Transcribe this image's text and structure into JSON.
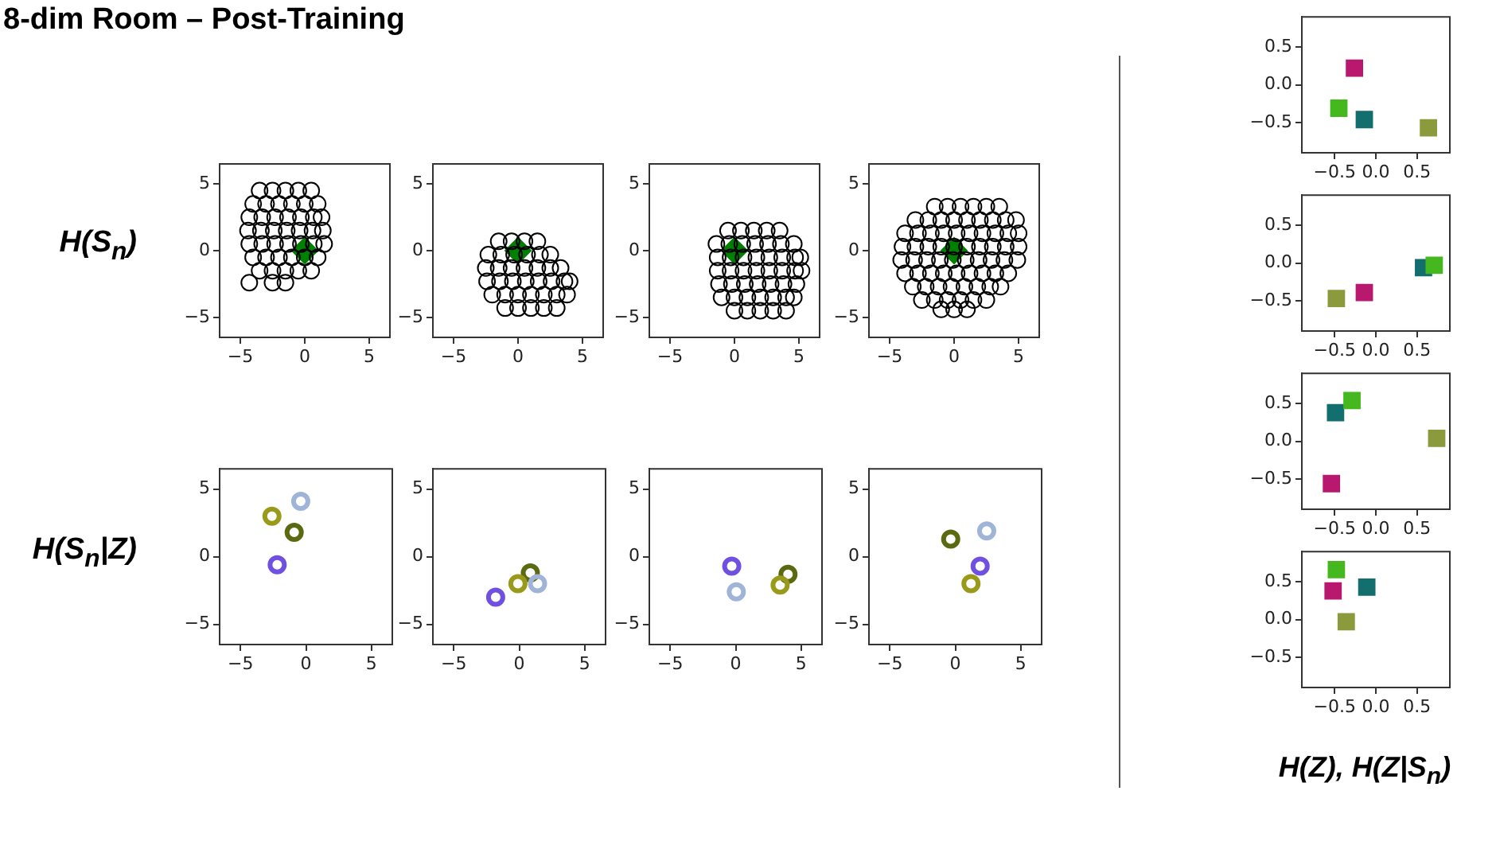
{
  "chart_data": [
    {
      "type": "scatter",
      "title": "8-dim Room – Post-Training",
      "ylabel": "H(S$_{n}$)",
      "xlim": [
        -6.6,
        6.6
      ],
      "ylim": [
        -6.5,
        6.5
      ],
      "xticks": [
        {
          "value": -5,
          "label": "−5"
        },
        0,
        5
      ],
      "yticks": [
        {
          "value": -5,
          "label": "−5"
        },
        0,
        5
      ],
      "series": [
        {
          "color": "#000000",
          "marker": "circle",
          "x": [
            -3.5,
            -2.5,
            -1.5,
            -0.5,
            0.5,
            -4,
            -3,
            -2,
            -1,
            0,
            1,
            -4.3,
            -3.3,
            -2.3,
            -1.3,
            -0.3,
            0.7,
            1.3,
            -4.4,
            -3.4,
            -2.4,
            -1.4,
            -0.4,
            0.6,
            1.4,
            -4.3,
            -3.3,
            -2.3,
            -1.3,
            -0.3,
            0.7,
            1.5,
            -4,
            -3,
            -2,
            -1,
            0,
            1,
            -3.5,
            -2.5,
            -1.5,
            -0.5,
            0.5,
            -4.3,
            -2.5,
            -1.5
          ],
          "values": [
            4.5,
            4.5,
            4.5,
            4.5,
            4.5,
            3.5,
            3.5,
            3.5,
            3.5,
            3.5,
            3.5,
            2.5,
            2.5,
            2.5,
            2.5,
            2.5,
            2.5,
            2.5,
            1.5,
            1.5,
            1.5,
            1.5,
            1.5,
            1.5,
            1.5,
            0.5,
            0.5,
            0.5,
            0.5,
            0.5,
            0.5,
            0.5,
            -0.5,
            -0.5,
            -0.5,
            -0.5,
            -0.5,
            -0.5,
            -1.5,
            -1.5,
            -1.5,
            -1.5,
            -1.5,
            -2.4,
            -2.4,
            -2.4
          ]
        },
        {
          "color": "#008000",
          "marker": "diamond",
          "x": [
            0
          ],
          "values": [
            0
          ]
        }
      ]
    },
    {
      "type": "scatter",
      "xlim": [
        -6.6,
        6.6
      ],
      "ylim": [
        -6.5,
        6.5
      ],
      "xticks": [
        {
          "value": -5,
          "label": "−5"
        },
        0,
        5
      ],
      "yticks": [
        {
          "value": -5,
          "label": "−5"
        },
        0,
        5
      ],
      "series": [
        {
          "color": "#000000",
          "marker": "circle",
          "x": [
            -1.5,
            -0.5,
            0.5,
            1.5,
            -2.3,
            -1.3,
            -0.3,
            0.7,
            1.7,
            2.5,
            -2.5,
            -1.5,
            -0.5,
            0.5,
            1.5,
            2.5,
            3.3,
            -2.4,
            -1.4,
            -0.4,
            0.6,
            1.6,
            2.6,
            3.6,
            4,
            -2,
            -1,
            0,
            1,
            2,
            3,
            3.8,
            -1,
            0,
            1,
            2,
            3
          ],
          "values": [
            0.7,
            0.7,
            0.7,
            0.7,
            -0.3,
            -0.3,
            -0.3,
            -0.3,
            -0.3,
            -0.3,
            -1.3,
            -1.3,
            -1.3,
            -1.3,
            -1.3,
            -1.3,
            -1.3,
            -2.3,
            -2.3,
            -2.3,
            -2.3,
            -2.3,
            -2.3,
            -2.3,
            -2.3,
            -3.3,
            -3.3,
            -3.3,
            -3.3,
            -3.3,
            -3.3,
            -3.3,
            -4.3,
            -4.3,
            -4.3,
            -4.3,
            -4.3
          ]
        },
        {
          "color": "#008000",
          "marker": "diamond",
          "x": [
            0
          ],
          "values": [
            0
          ]
        }
      ]
    },
    {
      "type": "scatter",
      "xlim": [
        -6.6,
        6.6
      ],
      "ylim": [
        -6.5,
        6.5
      ],
      "xticks": [
        {
          "value": -5,
          "label": "−5"
        },
        0,
        5
      ],
      "yticks": [
        {
          "value": -5,
          "label": "−5"
        },
        0,
        5
      ],
      "series": [
        {
          "color": "#000000",
          "marker": "circle",
          "x": [
            -0.5,
            0.5,
            1.5,
            2.5,
            3.5,
            -1.4,
            -0.4,
            0.6,
            1.6,
            2.6,
            3.6,
            4.6,
            -1.3,
            -0.3,
            0.7,
            1.7,
            2.7,
            3.7,
            4.7,
            5.1,
            -1.3,
            -0.3,
            0.7,
            1.7,
            2.7,
            3.7,
            4.7,
            5.2,
            -1.2,
            -0.2,
            0.8,
            1.8,
            2.8,
            3.8,
            4.8,
            -1,
            0,
            1,
            2,
            3,
            4,
            4.6,
            0,
            1,
            2,
            3,
            4
          ],
          "values": [
            1.5,
            1.5,
            1.5,
            1.5,
            1.5,
            0.5,
            0.5,
            0.5,
            0.5,
            0.5,
            0.5,
            0.5,
            -0.5,
            -0.5,
            -0.5,
            -0.5,
            -0.5,
            -0.5,
            -0.5,
            -0.5,
            -1.5,
            -1.5,
            -1.5,
            -1.5,
            -1.5,
            -1.5,
            -1.5,
            -1.5,
            -2.5,
            -2.5,
            -2.5,
            -2.5,
            -2.5,
            -2.5,
            -2.5,
            -3.5,
            -3.5,
            -3.5,
            -3.5,
            -3.5,
            -3.5,
            -3.5,
            -4.5,
            -4.5,
            -4.5,
            -4.5,
            -4.5
          ]
        },
        {
          "color": "#008000",
          "marker": "diamond",
          "x": [
            0
          ],
          "values": [
            0
          ]
        }
      ]
    },
    {
      "type": "scatter",
      "xlim": [
        -6.6,
        6.6
      ],
      "ylim": [
        -6.5,
        6.5
      ],
      "xticks": [
        {
          "value": -5,
          "label": "−5"
        },
        0,
        5
      ],
      "yticks": [
        {
          "value": -5,
          "label": "−5"
        },
        0,
        5
      ],
      "series": [
        {
          "color": "#000000",
          "marker": "circle",
          "x": [
            -1.5,
            -0.5,
            0.5,
            1.5,
            2.5,
            3.5,
            -3,
            -2,
            -1,
            0,
            1,
            2,
            3,
            4,
            4.8,
            -3.8,
            -2.8,
            -1.8,
            -0.8,
            0.2,
            1.2,
            2.2,
            3.2,
            4.2,
            5,
            -4,
            -3,
            -2,
            -1,
            0,
            1,
            2,
            3,
            4,
            5,
            -4.1,
            -3.1,
            -2.1,
            -1.1,
            -0.1,
            0.9,
            1.9,
            2.9,
            3.9,
            4.9,
            -3.8,
            -2.8,
            -1.8,
            -0.8,
            0.2,
            1.2,
            2.2,
            3.2,
            4.2,
            -3.2,
            -2.2,
            -1.2,
            -0.2,
            0.8,
            1.8,
            2.8,
            3.6,
            -2.5,
            -1.5,
            -0.5,
            0.5,
            1.5,
            2.5,
            -1,
            0,
            1
          ],
          "values": [
            3.3,
            3.3,
            3.3,
            3.3,
            3.3,
            3.3,
            2.3,
            2.3,
            2.3,
            2.3,
            2.3,
            2.3,
            2.3,
            2.3,
            2.3,
            1.3,
            1.3,
            1.3,
            1.3,
            1.3,
            1.3,
            1.3,
            1.3,
            1.3,
            1.3,
            0.3,
            0.3,
            0.3,
            0.3,
            0.3,
            0.3,
            0.3,
            0.3,
            0.3,
            0.3,
            -0.7,
            -0.7,
            -0.7,
            -0.7,
            -0.7,
            -0.7,
            -0.7,
            -0.7,
            -0.7,
            -0.7,
            -1.7,
            -1.7,
            -1.7,
            -1.7,
            -1.7,
            -1.7,
            -1.7,
            -1.7,
            -1.7,
            -2.7,
            -2.7,
            -2.7,
            -2.7,
            -2.7,
            -2.7,
            -2.7,
            -2.7,
            -3.7,
            -3.7,
            -3.7,
            -3.7,
            -3.7,
            -3.7,
            -4.4,
            -4.4,
            -4.4
          ]
        },
        {
          "color": "#008000",
          "marker": "diamond",
          "x": [
            0
          ],
          "values": [
            0
          ]
        }
      ]
    },
    {
      "type": "scatter",
      "ylabel": "H(S$_{n}$|Z)",
      "xlim": [
        -6.6,
        6.6
      ],
      "ylim": [
        -6.5,
        6.5
      ],
      "xticks": [
        {
          "value": -5,
          "label": "−5"
        },
        0,
        5
      ],
      "yticks": [
        {
          "value": -5,
          "label": "−5"
        },
        0,
        5
      ],
      "series": [
        {
          "color": "#9a9a1a",
          "marker": "circle",
          "x": [
            -2.6
          ],
          "values": [
            3.0
          ]
        },
        {
          "color": "#a0b4d8",
          "marker": "circle",
          "x": [
            -0.4
          ],
          "values": [
            4.1
          ]
        },
        {
          "color": "#5a6a10",
          "marker": "circle",
          "x": [
            -0.9
          ],
          "values": [
            1.8
          ]
        },
        {
          "color": "#7050e0",
          "marker": "circle",
          "x": [
            -2.2
          ],
          "values": [
            -0.6
          ]
        }
      ]
    },
    {
      "type": "scatter",
      "xlim": [
        -6.6,
        6.6
      ],
      "ylim": [
        -6.5,
        6.5
      ],
      "xticks": [
        {
          "value": -5,
          "label": "−5"
        },
        0,
        5
      ],
      "yticks": [
        {
          "value": -5,
          "label": "−5"
        },
        0,
        5
      ],
      "series": [
        {
          "color": "#9a9a1a",
          "marker": "circle",
          "x": [
            -0.1
          ],
          "values": [
            -2.0
          ]
        },
        {
          "color": "#a0b4d8",
          "marker": "circle",
          "x": [
            1.4
          ],
          "values": [
            -2.0
          ]
        },
        {
          "color": "#5a6a10",
          "marker": "circle",
          "x": [
            0.85
          ],
          "values": [
            -1.2
          ]
        },
        {
          "color": "#7050e0",
          "marker": "circle",
          "x": [
            -1.8
          ],
          "values": [
            -3.0
          ]
        }
      ]
    },
    {
      "type": "scatter",
      "xlim": [
        -6.6,
        6.6
      ],
      "ylim": [
        -6.5,
        6.5
      ],
      "xticks": [
        {
          "value": -5,
          "label": "−5"
        },
        0,
        5
      ],
      "yticks": [
        {
          "value": -5,
          "label": "−5"
        },
        0,
        5
      ],
      "series": [
        {
          "color": "#9a9a1a",
          "marker": "circle",
          "x": [
            3.4
          ],
          "values": [
            -2.1
          ]
        },
        {
          "color": "#a0b4d8",
          "marker": "circle",
          "x": [
            0.05
          ],
          "values": [
            -2.6
          ]
        },
        {
          "color": "#5a6a10",
          "marker": "circle",
          "x": [
            4.0
          ],
          "values": [
            -1.3
          ]
        },
        {
          "color": "#7050e0",
          "marker": "circle",
          "x": [
            -0.3
          ],
          "values": [
            -0.7
          ]
        }
      ]
    },
    {
      "type": "scatter",
      "xlim": [
        -6.6,
        6.6
      ],
      "ylim": [
        -6.5,
        6.5
      ],
      "xticks": [
        {
          "value": -5,
          "label": "−5"
        },
        0,
        5
      ],
      "yticks": [
        {
          "value": -5,
          "label": "−5"
        },
        0,
        5
      ],
      "series": [
        {
          "color": "#9a9a1a",
          "marker": "circle",
          "x": [
            1.2
          ],
          "values": [
            -2.0
          ]
        },
        {
          "color": "#a0b4d8",
          "marker": "circle",
          "x": [
            2.4
          ],
          "values": [
            1.9
          ]
        },
        {
          "color": "#5a6a10",
          "marker": "circle",
          "x": [
            -0.35
          ],
          "values": [
            1.3
          ]
        },
        {
          "color": "#7050e0",
          "marker": "circle",
          "x": [
            1.9
          ],
          "values": [
            -0.7
          ]
        }
      ]
    },
    {
      "type": "scatter",
      "xlim": [
        -0.9,
        0.9
      ],
      "ylim": [
        -0.9,
        0.9
      ],
      "xticks": [
        {
          "value": -0.5,
          "label": "−0.5"
        },
        {
          "value": 0,
          "label": "0.0"
        },
        0.5
      ],
      "yticks": [
        {
          "value": -0.5,
          "label": "−0.5"
        },
        {
          "value": 0,
          "label": "0.0"
        },
        0.5
      ],
      "series": [
        {
          "color": "#b8186e",
          "marker": "square",
          "x": [
            -0.26
          ],
          "values": [
            0.22
          ]
        },
        {
          "color": "#44b81e",
          "marker": "square",
          "x": [
            -0.45
          ],
          "values": [
            -0.31
          ]
        },
        {
          "color": "#136e6e",
          "marker": "square",
          "x": [
            -0.14
          ],
          "values": [
            -0.46
          ]
        },
        {
          "color": "#8a9a3c",
          "marker": "square",
          "x": [
            0.64
          ],
          "values": [
            -0.57
          ]
        }
      ]
    },
    {
      "type": "scatter",
      "xlim": [
        -0.9,
        0.9
      ],
      "ylim": [
        -0.9,
        0.9
      ],
      "xticks": [
        {
          "value": -0.5,
          "label": "−0.5"
        },
        {
          "value": 0,
          "label": "0.0"
        },
        0.5
      ],
      "yticks": [
        {
          "value": -0.5,
          "label": "−0.5"
        },
        {
          "value": 0,
          "label": "0.0"
        },
        0.5
      ],
      "series": [
        {
          "color": "#b8186e",
          "marker": "square",
          "x": [
            -0.14
          ],
          "values": [
            -0.39
          ]
        },
        {
          "color": "#44b81e",
          "marker": "square",
          "x": [
            0.71
          ],
          "values": [
            -0.03
          ]
        },
        {
          "color": "#136e6e",
          "marker": "square",
          "x": [
            0.58
          ],
          "values": [
            -0.06
          ]
        },
        {
          "color": "#8a9a3c",
          "marker": "square",
          "x": [
            -0.48
          ],
          "values": [
            -0.47
          ]
        }
      ]
    },
    {
      "type": "scatter",
      "xlim": [
        -0.9,
        0.9
      ],
      "ylim": [
        -0.9,
        0.9
      ],
      "xticks": [
        {
          "value": -0.5,
          "label": "−0.5"
        },
        {
          "value": 0,
          "label": "0.0"
        },
        0.5
      ],
      "yticks": [
        {
          "value": -0.5,
          "label": "−0.5"
        },
        {
          "value": 0,
          "label": "0.0"
        },
        0.5
      ],
      "series": [
        {
          "color": "#b8186e",
          "marker": "square",
          "x": [
            -0.54
          ],
          "values": [
            -0.56
          ]
        },
        {
          "color": "#44b81e",
          "marker": "square",
          "x": [
            -0.29
          ],
          "values": [
            0.54
          ]
        },
        {
          "color": "#136e6e",
          "marker": "square",
          "x": [
            -0.49
          ],
          "values": [
            0.38
          ]
        },
        {
          "color": "#8a9a3c",
          "marker": "square",
          "x": [
            0.74
          ],
          "values": [
            0.04
          ]
        }
      ]
    },
    {
      "type": "scatter",
      "xlabel": "H(Z), H(Z|S$_{n}$)",
      "xlim": [
        -0.9,
        0.9
      ],
      "ylim": [
        -0.9,
        0.9
      ],
      "xticks": [
        {
          "value": -0.5,
          "label": "−0.5"
        },
        {
          "value": 0,
          "label": "0.0"
        },
        0.5
      ],
      "yticks": [
        {
          "value": -0.5,
          "label": "−0.5"
        },
        {
          "value": 0,
          "label": "0.0"
        },
        0.5
      ],
      "series": [
        {
          "color": "#b8186e",
          "marker": "square",
          "x": [
            -0.52
          ],
          "values": [
            0.38
          ]
        },
        {
          "color": "#44b81e",
          "marker": "square",
          "x": [
            -0.48
          ],
          "values": [
            0.66
          ]
        },
        {
          "color": "#136e6e",
          "marker": "square",
          "x": [
            -0.11
          ],
          "values": [
            0.43
          ]
        },
        {
          "color": "#8a9a3c",
          "marker": "square",
          "x": [
            -0.36
          ],
          "values": [
            -0.03
          ]
        }
      ]
    }
  ]
}
